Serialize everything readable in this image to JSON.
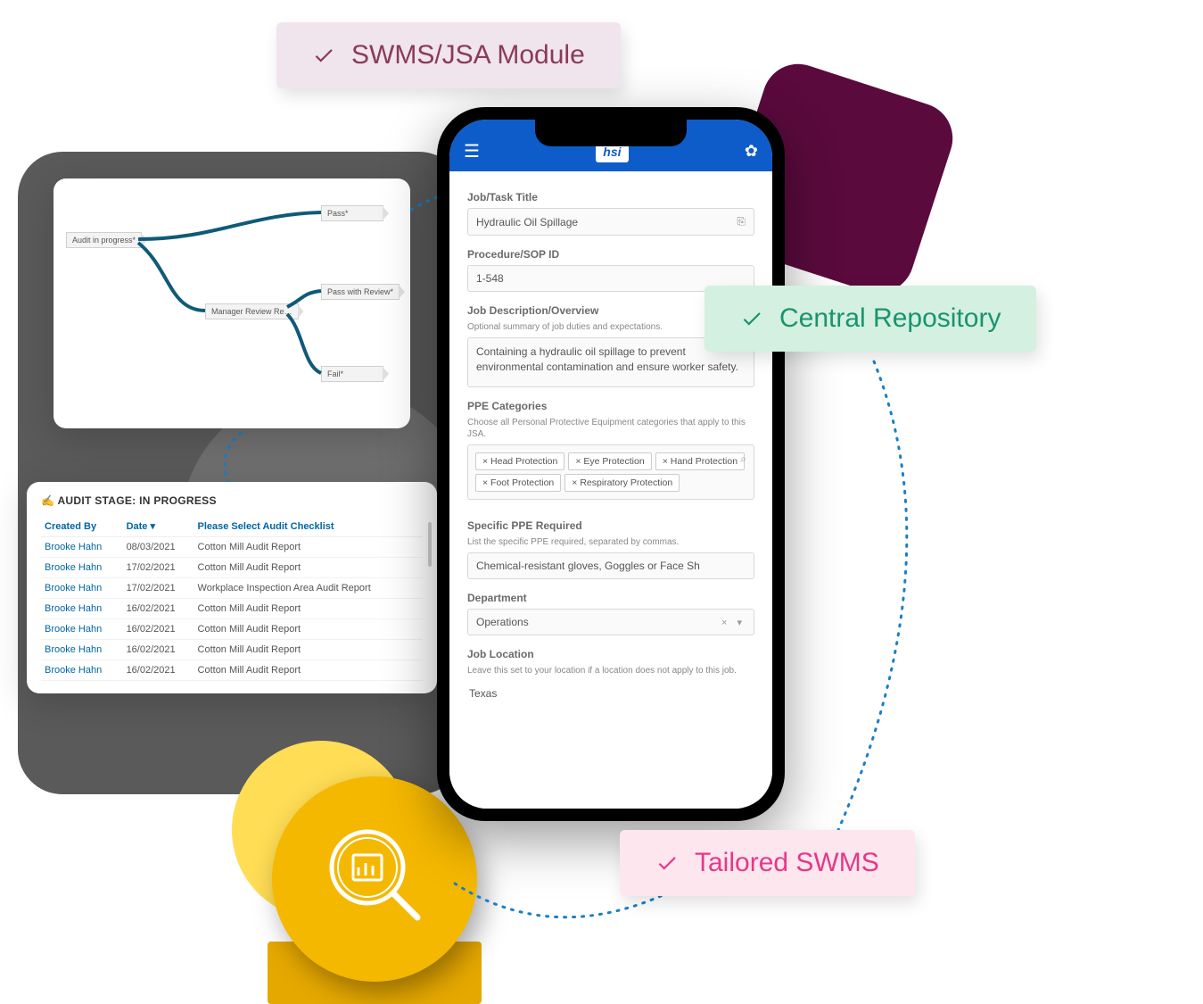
{
  "badges": {
    "swms": {
      "label": "SWMS/JSA Module",
      "bg": "#f0e5ec",
      "fg": "#8a3a5a",
      "check": "#8a3a5a"
    },
    "repo": {
      "label": "Central Repository",
      "bg": "#d4f0e0",
      "fg": "#1a936f",
      "check": "#1a936f"
    },
    "tailored": {
      "label": "Tailored SWMS",
      "bg": "#fde6ee",
      "fg": "#e63888",
      "check": "#e63888"
    }
  },
  "workflow": {
    "nodes": {
      "audit": "Audit in progress*",
      "manager": "Manager Review Re…",
      "pass": "Pass*",
      "pass_review": "Pass with Review*",
      "fail": "Fail*"
    },
    "line_color": "#0f5a78"
  },
  "audit": {
    "title_prefix": "✍️ ",
    "title": "AUDIT STAGE: IN PROGRESS",
    "columns": {
      "created_by": "Created By",
      "date": "Date ▾",
      "checklist": "Please Select Audit Checklist"
    },
    "rows": [
      {
        "by": "Brooke Hahn",
        "date": "08/03/2021",
        "checklist": "Cotton Mill Audit Report"
      },
      {
        "by": "Brooke Hahn",
        "date": "17/02/2021",
        "checklist": "Cotton Mill Audit Report"
      },
      {
        "by": "Brooke Hahn",
        "date": "17/02/2021",
        "checklist": "Workplace Inspection Area Audit Report"
      },
      {
        "by": "Brooke Hahn",
        "date": "16/02/2021",
        "checklist": "Cotton Mill Audit Report"
      },
      {
        "by": "Brooke Hahn",
        "date": "16/02/2021",
        "checklist": "Cotton Mill Audit Report"
      },
      {
        "by": "Brooke Hahn",
        "date": "16/02/2021",
        "checklist": "Cotton Mill Audit Report"
      },
      {
        "by": "Brooke Hahn",
        "date": "16/02/2021",
        "checklist": "Cotton Mill Audit Report"
      }
    ]
  },
  "phone": {
    "logo": "hsi",
    "fields": {
      "job_title": {
        "label": "Job/Task Title",
        "value": "Hydraulic Oil Spillage"
      },
      "sop": {
        "label": "Procedure/SOP  ID",
        "value": "1-548"
      },
      "description": {
        "label": "Job Description/Overview",
        "help": "Optional summary of job duties and expectations.",
        "value": "Containing a hydraulic oil spillage to prevent environmental contamination and ensure worker safety."
      },
      "ppe_cat": {
        "label": "PPE Categories",
        "help": "Choose all Personal Protective Equipment categories that apply to this JSA.",
        "tags": [
          "Head Protection",
          "Eye Protection",
          "Hand Protection",
          "Foot Protection",
          "Respiratory Protection"
        ]
      },
      "ppe_specific": {
        "label": "Specific PPE Required",
        "help": "List the specific PPE required, separated by commas.",
        "value": "Chemical-resistant gloves, Goggles or Face Sh"
      },
      "department": {
        "label": "Department",
        "value": "Operations"
      },
      "location": {
        "label": "Job Location",
        "help": "Leave this set to your location if a location does not apply to this job.",
        "value": "Texas"
      }
    }
  },
  "colors": {
    "gray_bg": "#5a5a5a",
    "maroon": "#5a0a3d",
    "yellow": "#f5b800",
    "phone_header": "#0d5cc9",
    "dots": "#1a7fc4"
  }
}
